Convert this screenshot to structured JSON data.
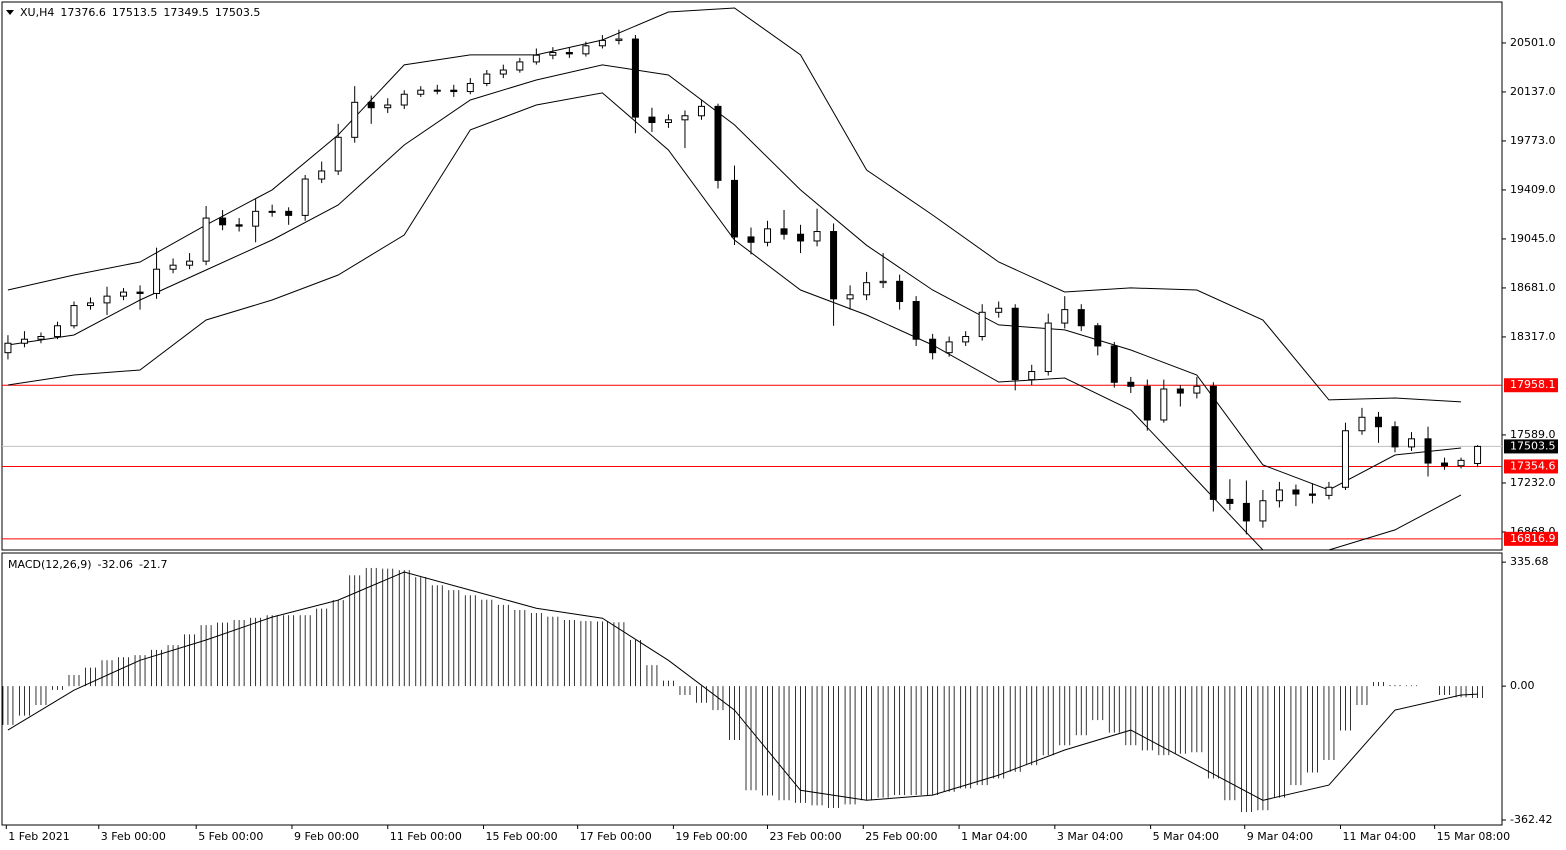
{
  "chart_data": {
    "type": "candlestick",
    "symbol": "XU,H4",
    "ohlc": [
      [
        18200,
        18330,
        18150,
        18270
      ],
      [
        18270,
        18360,
        18240,
        18300
      ],
      [
        18300,
        18350,
        18270,
        18320
      ],
      [
        18320,
        18430,
        18300,
        18400
      ],
      [
        18400,
        18580,
        18380,
        18550
      ],
      [
        18550,
        18610,
        18520,
        18570
      ],
      [
        18570,
        18690,
        18480,
        18620
      ],
      [
        18620,
        18680,
        18590,
        18650
      ],
      [
        18650,
        18700,
        18520,
        18640
      ],
      [
        18640,
        18980,
        18600,
        18820
      ],
      [
        18820,
        18900,
        18790,
        18850
      ],
      [
        18850,
        18940,
        18820,
        18880
      ],
      [
        18880,
        19290,
        18850,
        19200
      ],
      [
        19200,
        19260,
        19110,
        19150
      ],
      [
        19150,
        19200,
        19100,
        19140
      ],
      [
        19140,
        19340,
        19020,
        19250
      ],
      [
        19250,
        19300,
        19210,
        19250
      ],
      [
        19250,
        19280,
        19150,
        19220
      ],
      [
        19220,
        19520,
        19180,
        19490
      ],
      [
        19490,
        19620,
        19460,
        19550
      ],
      [
        19550,
        19900,
        19520,
        19800
      ],
      [
        19800,
        20180,
        19760,
        20060
      ],
      [
        20060,
        20110,
        19900,
        20020
      ],
      [
        20020,
        20090,
        19980,
        20040
      ],
      [
        20040,
        20150,
        20010,
        20120
      ],
      [
        20120,
        20180,
        20100,
        20150
      ],
      [
        20150,
        20190,
        20120,
        20150
      ],
      [
        20150,
        20190,
        20100,
        20140
      ],
      [
        20140,
        20240,
        20120,
        20200
      ],
      [
        20200,
        20300,
        20180,
        20270
      ],
      [
        20270,
        20340,
        20240,
        20300
      ],
      [
        20300,
        20390,
        20280,
        20360
      ],
      [
        20360,
        20460,
        20340,
        20410
      ],
      [
        20410,
        20470,
        20380,
        20430
      ],
      [
        20430,
        20470,
        20390,
        20420
      ],
      [
        20420,
        20510,
        20400,
        20480
      ],
      [
        20480,
        20560,
        20460,
        20520
      ],
      [
        20520,
        20600,
        20490,
        20530
      ],
      [
        20530,
        20560,
        19830,
        19950
      ],
      [
        19950,
        20020,
        19840,
        19910
      ],
      [
        19910,
        19970,
        19870,
        19930
      ],
      [
        19930,
        20000,
        19720,
        19960
      ],
      [
        19960,
        20080,
        19930,
        20030
      ],
      [
        20030,
        20050,
        19420,
        19480
      ],
      [
        19480,
        19590,
        19000,
        19060
      ],
      [
        19060,
        19130,
        18930,
        19020
      ],
      [
        19020,
        19180,
        18990,
        19120
      ],
      [
        19120,
        19260,
        19040,
        19080
      ],
      [
        19080,
        19150,
        18940,
        19030
      ],
      [
        19030,
        19270,
        18990,
        19100
      ],
      [
        19100,
        19160,
        18400,
        18600
      ],
      [
        18600,
        18700,
        18520,
        18630
      ],
      [
        18630,
        18800,
        18590,
        18720
      ],
      [
        18720,
        18940,
        18680,
        18730
      ],
      [
        18730,
        18780,
        18520,
        18580
      ],
      [
        18580,
        18620,
        18250,
        18300
      ],
      [
        18300,
        18340,
        18150,
        18200
      ],
      [
        18200,
        18320,
        18170,
        18280
      ],
      [
        18280,
        18360,
        18250,
        18320
      ],
      [
        18320,
        18560,
        18290,
        18500
      ],
      [
        18500,
        18580,
        18460,
        18530
      ],
      [
        18530,
        18560,
        17920,
        18000
      ],
      [
        18000,
        18110,
        17960,
        18060
      ],
      [
        18060,
        18490,
        18030,
        18420
      ],
      [
        18420,
        18620,
        18380,
        18520
      ],
      [
        18520,
        18560,
        18360,
        18400
      ],
      [
        18400,
        18420,
        18180,
        18250
      ],
      [
        18250,
        18280,
        17940,
        17980
      ],
      [
        17980,
        18020,
        17900,
        17950
      ],
      [
        17950,
        18000,
        17620,
        17700
      ],
      [
        17700,
        18000,
        17680,
        17930
      ],
      [
        17930,
        17960,
        17800,
        17900
      ],
      [
        17900,
        18020,
        17860,
        17950
      ],
      [
        17950,
        17980,
        17020,
        17110
      ],
      [
        17110,
        17260,
        17030,
        17080
      ],
      [
        17080,
        17250,
        16850,
        16950
      ],
      [
        16950,
        17180,
        16900,
        17100
      ],
      [
        17100,
        17240,
        17050,
        17180
      ],
      [
        17180,
        17220,
        17060,
        17150
      ],
      [
        17150,
        17230,
        17080,
        17140
      ],
      [
        17140,
        17240,
        17110,
        17200
      ],
      [
        17200,
        17680,
        17180,
        17620
      ],
      [
        17620,
        17790,
        17590,
        17720
      ],
      [
        17720,
        17760,
        17530,
        17650
      ],
      [
        17650,
        17690,
        17460,
        17500
      ],
      [
        17500,
        17610,
        17470,
        17560
      ],
      [
        17560,
        17650,
        17280,
        17380
      ],
      [
        17380,
        17420,
        17330,
        17360
      ],
      [
        17360,
        17420,
        17340,
        17400
      ],
      [
        17376.6,
        17513.5,
        17349.5,
        17503.5
      ]
    ],
    "bands": {
      "x": [
        0,
        4,
        8,
        12,
        16,
        20,
        24,
        28,
        32,
        36,
        40,
        44,
        48,
        52,
        56,
        60,
        64,
        68,
        72,
        76,
        80,
        84,
        88
      ],
      "upper": [
        18666,
        18777,
        18874,
        19149,
        19409,
        19818,
        20338,
        20412,
        20412,
        20523,
        20731,
        20761,
        20412,
        19557,
        19223,
        18874,
        18651,
        18681,
        18666,
        18443,
        17849,
        17863,
        17834
      ],
      "middle": [
        18257,
        18331,
        18591,
        18814,
        19037,
        19297,
        19743,
        20077,
        20226,
        20338,
        20263,
        19892,
        19409,
        18998,
        18666,
        18406,
        18369,
        18220,
        18034,
        17366,
        17180,
        17440,
        17492
      ],
      "lower": [
        17960,
        18034,
        18071,
        18443,
        18591,
        18777,
        19074,
        19855,
        20040,
        20130,
        19706,
        19037,
        18666,
        18480,
        18257,
        17982,
        18012,
        17774,
        17254,
        16734,
        16734,
        16883,
        17143
      ]
    },
    "levels": [
      17958.1,
      17354.6,
      16816.9
    ],
    "level_color": "#ff0000",
    "xlim": [
      -0.36,
      90.48
    ],
    "ylim": [
      16734,
      20783
    ],
    "yticks": [
      {
        "value": 20501,
        "label": "20501.0"
      },
      {
        "value": 20137,
        "label": "20137.0"
      },
      {
        "value": 19773,
        "label": "19773.0"
      },
      {
        "value": 19409,
        "label": "19409.0"
      },
      {
        "value": 19045,
        "label": "19045.0"
      },
      {
        "value": 18681,
        "label": "18681.0"
      },
      {
        "value": 18317,
        "label": "18317.0"
      },
      {
        "value": 17589,
        "label": "17589.0"
      },
      {
        "value": 17232,
        "label": "17232.0"
      },
      {
        "value": 16868,
        "label": "16868.0"
      }
    ],
    "xticks": [
      {
        "value": -0.1,
        "label": "1 Feb 2021"
      },
      {
        "value": 5.5,
        "label": "3 Feb 00:00"
      },
      {
        "value": 11.4,
        "label": "5 Feb 00:00"
      },
      {
        "value": 17.2,
        "label": "9 Feb 00:00"
      },
      {
        "value": 23.0,
        "label": "11 Feb 00:00"
      },
      {
        "value": 28.8,
        "label": "15 Feb 00:00"
      },
      {
        "value": 34.5,
        "label": "17 Feb 00:00"
      },
      {
        "value": 40.3,
        "label": "19 Feb 00:00"
      },
      {
        "value": 46.0,
        "label": "23 Feb 00:00"
      },
      {
        "value": 51.8,
        "label": "25 Feb 00:00"
      },
      {
        "value": 57.6,
        "label": "1 Mar 04:00"
      },
      {
        "value": 63.4,
        "label": "3 Mar 04:00"
      },
      {
        "value": 69.2,
        "label": "5 Mar 04:00"
      },
      {
        "value": 74.9,
        "label": "9 Mar 04:00"
      },
      {
        "value": 80.7,
        "label": "11 Mar 04:00"
      },
      {
        "value": 86.4,
        "label": "15 Mar 08:00"
      }
    ],
    "macd": {
      "title": "MACD(12,26,9)",
      "histogram": [
        -105,
        -80,
        -51,
        -10,
        30,
        50,
        70,
        78,
        84,
        98,
        111,
        140,
        165,
        172,
        179,
        185,
        192,
        192,
        192,
        210,
        233,
        300,
        320,
        318,
        314,
        295,
        273,
        260,
        246,
        234,
        220,
        206,
        198,
        188,
        179,
        176,
        175,
        173,
        125,
        57,
        15,
        -24,
        -45,
        -65,
        -146,
        -282,
        -296,
        -309,
        -316,
        -323,
        -330,
        -320,
        -309,
        -302,
        -295,
        -295,
        -295,
        -286,
        -277,
        -268,
        -250,
        -232,
        -214,
        -187,
        -160,
        -133,
        -92,
        -126,
        -160,
        -174,
        -187,
        -183,
        -179,
        -250,
        -309,
        -341,
        -336,
        -302,
        -268,
        -234,
        -200,
        -120,
        -51,
        11,
        3,
        2,
        0,
        -24,
        -30,
        -32.06
      ],
      "signal_x": [
        0,
        4,
        8,
        12,
        16,
        20,
        24,
        28,
        32,
        36,
        40,
        44,
        48,
        52,
        56,
        60,
        64,
        68,
        72,
        76,
        80,
        84,
        88,
        89
      ],
      "signal": [
        -119,
        -11,
        70,
        125,
        187,
        233,
        309,
        260,
        211,
        184,
        70,
        -65,
        -282,
        -309,
        -295,
        -241,
        -173,
        -119,
        -214,
        -309,
        -268,
        -65,
        -24,
        -21.7
      ],
      "ylim": [
        -376,
        355
      ],
      "yticks": [
        335.68,
        {
          "value": 0,
          "label": "0.00"
        },
        -362.42
      ]
    }
  }
}
